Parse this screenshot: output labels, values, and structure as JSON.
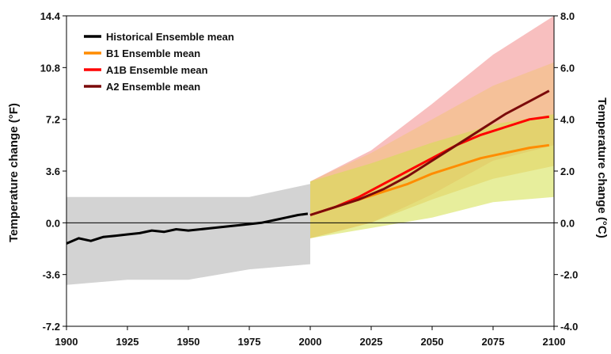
{
  "chart_data": {
    "type": "line",
    "title": "",
    "xlabel": "",
    "ylabel_left": "Temperature change (°F)",
    "ylabel_right": "Temperature change (°C)",
    "xlim": [
      1900,
      2100
    ],
    "ylim_f": [
      -7.2,
      14.4
    ],
    "ylim_c": [
      -4.0,
      8.0
    ],
    "x_ticks": [
      "1900",
      "1925",
      "1950",
      "1975",
      "2000",
      "2025",
      "2050",
      "2075",
      "2100"
    ],
    "y_ticks_left": [
      "-7.2",
      "-3.6",
      "0.0",
      "3.6",
      "7.2",
      "10.8",
      "14.4"
    ],
    "y_ticks_right": [
      "-4.0",
      "-2.0",
      "0.0",
      "2.0",
      "4.0",
      "6.0",
      "8.0"
    ],
    "zero_line": true,
    "grid": false,
    "legend_position": "top-left",
    "colors": {
      "historical": "#000000",
      "b1": "#ff8c00",
      "a1b": "#ff0000",
      "a2": "#7b0a0a",
      "hist_spread": "#c4c4c4",
      "b1_spread": "#d4e04a",
      "a1b_spread": "#f3c27a",
      "a2_spread": "#f28b8b"
    },
    "series": [
      {
        "name": "Historical Ensemble mean",
        "unit": "°C",
        "x": [
          1900,
          1905,
          1910,
          1915,
          1920,
          1925,
          1930,
          1935,
          1940,
          1945,
          1950,
          1955,
          1960,
          1965,
          1970,
          1975,
          1980,
          1985,
          1990,
          1995,
          1999
        ],
        "values": [
          -0.8,
          -0.6,
          -0.7,
          -0.55,
          -0.5,
          -0.45,
          -0.4,
          -0.3,
          -0.35,
          -0.25,
          -0.3,
          -0.25,
          -0.2,
          -0.15,
          -0.1,
          -0.05,
          0.0,
          0.1,
          0.2,
          0.3,
          0.35
        ]
      },
      {
        "name": "B1 Ensemble mean",
        "unit": "°C",
        "x": [
          2000,
          2010,
          2020,
          2030,
          2040,
          2050,
          2060,
          2070,
          2080,
          2090,
          2098
        ],
        "values": [
          0.3,
          0.6,
          0.9,
          1.2,
          1.5,
          1.9,
          2.2,
          2.5,
          2.7,
          2.9,
          3.0
        ]
      },
      {
        "name": "A1B Ensemble mean",
        "unit": "°C",
        "x": [
          2000,
          2010,
          2020,
          2030,
          2040,
          2050,
          2060,
          2070,
          2080,
          2090,
          2098
        ],
        "values": [
          0.3,
          0.6,
          1.0,
          1.5,
          2.0,
          2.5,
          3.0,
          3.4,
          3.7,
          4.0,
          4.1
        ]
      },
      {
        "name": "A2 Ensemble mean",
        "unit": "°C",
        "x": [
          2000,
          2010,
          2020,
          2030,
          2040,
          2050,
          2060,
          2070,
          2080,
          2090,
          2098
        ],
        "values": [
          0.3,
          0.6,
          0.9,
          1.3,
          1.8,
          2.4,
          3.0,
          3.6,
          4.2,
          4.7,
          5.1
        ]
      }
    ],
    "spreads": [
      {
        "of": "Historical",
        "x": [
          1900,
          1925,
          1950,
          1975,
          2000
        ],
        "low": [
          -2.4,
          -2.2,
          -2.2,
          -1.8,
          -1.6
        ],
        "high": [
          1.0,
          1.0,
          1.0,
          1.0,
          1.5
        ]
      },
      {
        "of": "B1",
        "x": [
          2000,
          2025,
          2050,
          2075,
          2100
        ],
        "low": [
          -0.6,
          -0.2,
          0.2,
          0.8,
          1.0
        ],
        "high": [
          1.6,
          2.3,
          3.1,
          3.8,
          4.2
        ]
      },
      {
        "of": "A1B",
        "x": [
          2000,
          2025,
          2050,
          2075,
          2100
        ],
        "low": [
          -0.6,
          0.0,
          0.9,
          1.7,
          2.2
        ],
        "high": [
          1.6,
          2.7,
          4.0,
          5.3,
          6.2
        ]
      },
      {
        "of": "A2",
        "x": [
          2000,
          2025,
          2050,
          2075,
          2100
        ],
        "low": [
          -0.6,
          0.0,
          1.1,
          2.4,
          3.0
        ],
        "high": [
          1.6,
          2.8,
          4.6,
          6.5,
          8.0
        ]
      }
    ]
  }
}
